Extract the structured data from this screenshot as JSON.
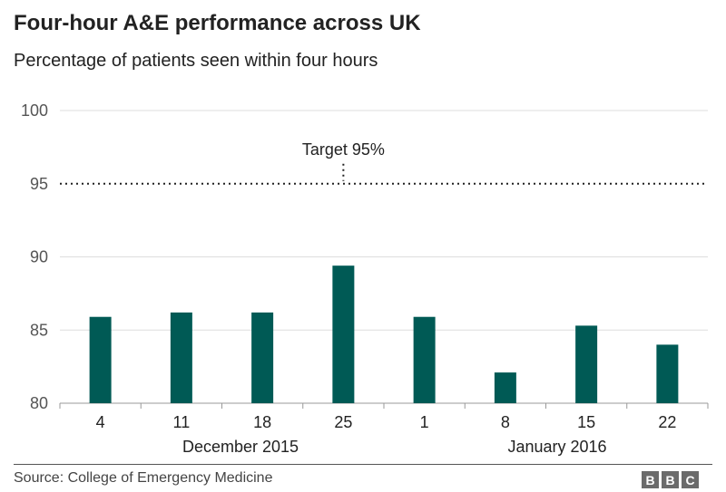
{
  "header": {
    "title": "Four-hour A&E performance across UK",
    "subtitle": "Percentage of patients seen within four hours"
  },
  "chart_data": {
    "type": "bar",
    "categories": [
      "4",
      "11",
      "18",
      "25",
      "1",
      "8",
      "15",
      "22"
    ],
    "values": [
      85.9,
      86.2,
      86.2,
      89.4,
      85.9,
      82.1,
      85.3,
      84.0
    ],
    "month_labels": [
      "December 2015",
      "January 2016"
    ],
    "ylim": [
      80,
      100
    ],
    "yticks": [
      "80",
      "85",
      "90",
      "95",
      "100"
    ],
    "target_value": 95,
    "target_label": "Target 95%",
    "bar_color": "#005a55",
    "grid": true
  },
  "footer": {
    "source": "Source: College of Emergency Medicine",
    "logo_letters": [
      "B",
      "B",
      "C"
    ]
  }
}
